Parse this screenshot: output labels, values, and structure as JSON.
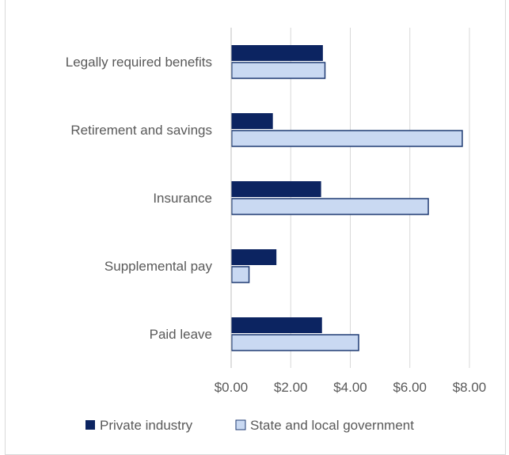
{
  "chart_data": {
    "type": "bar",
    "orientation": "horizontal",
    "title": "",
    "xlabel": "",
    "ylabel": "",
    "categories": [
      "Legally required benefits",
      "Retirement and savings",
      "Insurance",
      "Supplemental pay",
      "Paid leave"
    ],
    "series": [
      {
        "name": "Private industry",
        "values": [
          3.08,
          1.4,
          3.02,
          1.52,
          3.05
        ],
        "color": "#0c2461"
      },
      {
        "name": "State and local government",
        "values": [
          3.15,
          7.76,
          6.62,
          0.6,
          4.28
        ],
        "color": "#c9d9f2",
        "stroke": "#1f3b73"
      }
    ],
    "xlim": [
      0,
      8
    ],
    "xticks": [
      0,
      2,
      4,
      6,
      8
    ],
    "xtick_labels": [
      "$0.00",
      "$2.00",
      "$4.00",
      "$6.00",
      "$8.00"
    ],
    "grid": true,
    "legend_position": "bottom"
  }
}
